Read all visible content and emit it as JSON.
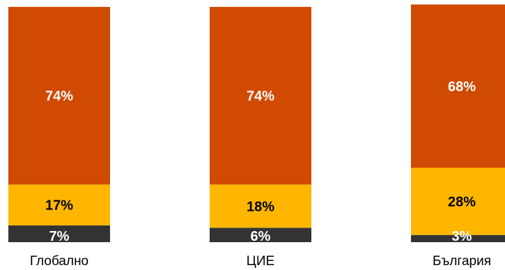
{
  "chart_data": {
    "type": "bar",
    "stacked": true,
    "categories": [
      "Глобално",
      "ЦИЕ",
      "България"
    ],
    "series": [
      {
        "values": [
          7,
          6,
          3
        ],
        "color": "#333333",
        "label_color": "#ffffff"
      },
      {
        "values": [
          17,
          18,
          28
        ],
        "color": "#ffb600",
        "label_color": "#000000"
      },
      {
        "values": [
          74,
          74,
          68
        ],
        "color": "#d04a02",
        "label_color": "#ffffff"
      }
    ],
    "value_labels": [
      [
        "7%",
        "6%",
        "3%"
      ],
      [
        "17%",
        "18%",
        "28%"
      ],
      [
        "74%",
        "74%",
        "68%"
      ]
    ],
    "title": "",
    "xlabel": "",
    "ylabel": "",
    "legend": "none",
    "grid": false
  }
}
